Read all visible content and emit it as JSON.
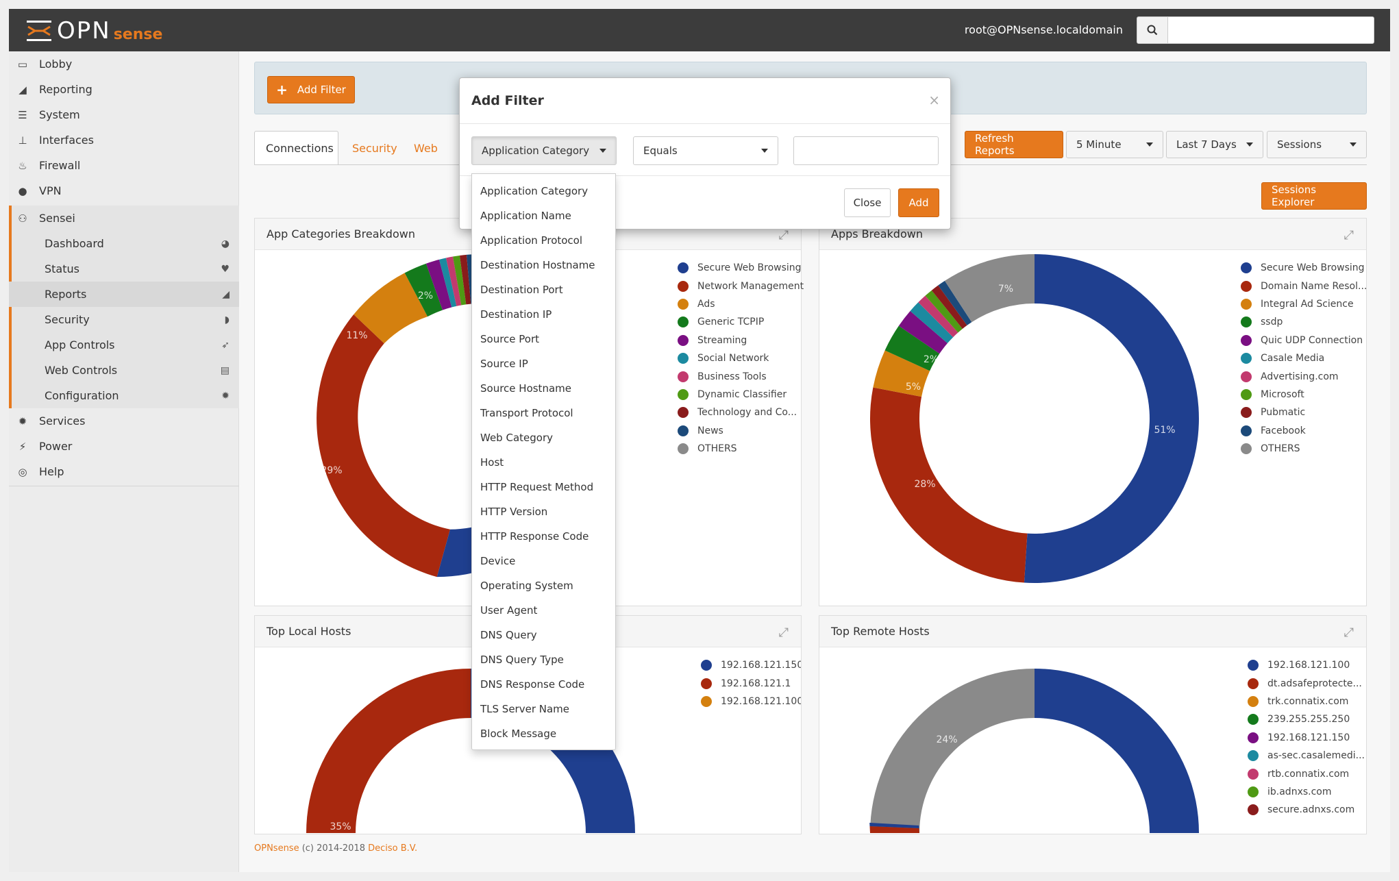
{
  "header": {
    "logo_opn": "OPN",
    "logo_sense": "sense",
    "user": "root@OPNsense.localdomain",
    "search_placeholder": ""
  },
  "sidebar": {
    "items": [
      {
        "label": "Lobby",
        "icon": "laptop-icon"
      },
      {
        "label": "Reporting",
        "icon": "area-chart-icon"
      },
      {
        "label": "System",
        "icon": "server-icon"
      },
      {
        "label": "Interfaces",
        "icon": "sitemap-icon"
      },
      {
        "label": "Firewall",
        "icon": "fire-icon"
      },
      {
        "label": "VPN",
        "icon": "globe-icon"
      },
      {
        "label": "Sensei",
        "icon": "binoculars-icon"
      }
    ],
    "sensei_sub": [
      {
        "label": "Dashboard",
        "icon": "dashboard-icon"
      },
      {
        "label": "Status",
        "icon": "heartbeat-icon"
      },
      {
        "label": "Reports",
        "icon": "area-chart-icon"
      },
      {
        "label": "Security",
        "icon": "shield-icon"
      },
      {
        "label": "App Controls",
        "icon": "paper-plane-icon"
      },
      {
        "label": "Web Controls",
        "icon": "browser-icon"
      },
      {
        "label": "Configuration",
        "icon": "gear-icon"
      }
    ],
    "bottom_items": [
      {
        "label": "Services",
        "icon": "cogs-icon"
      },
      {
        "label": "Power",
        "icon": "plug-icon"
      },
      {
        "label": "Help",
        "icon": "lifebuoy-icon"
      }
    ]
  },
  "filter_bar": {
    "add_filter": "Add Filter"
  },
  "tabs": [
    "Connections",
    "Security",
    "Web"
  ],
  "toolbar": {
    "refresh": "Refresh Reports",
    "interval": "5 Minute",
    "range": "Last 7 Days",
    "metric": "Sessions",
    "explorer": "Sessions Explorer"
  },
  "panels": {
    "app_categories": {
      "title": "App Categories Breakdown",
      "legend": [
        {
          "label": "Secure Web Browsing",
          "color": "#1f3f8f"
        },
        {
          "label": "Network Management",
          "color": "#a8280e"
        },
        {
          "label": "Ads",
          "color": "#d4800f"
        },
        {
          "label": "Generic TCPIP",
          "color": "#147a1c"
        },
        {
          "label": "Streaming",
          "color": "#7a0f82"
        },
        {
          "label": "Social Network",
          "color": "#1c8aa0"
        },
        {
          "label": "Business Tools",
          "color": "#c23a6e"
        },
        {
          "label": "Dynamic Classifier",
          "color": "#4f9a14"
        },
        {
          "label": "Technology and Co...",
          "color": "#8a1c1c"
        },
        {
          "label": "News",
          "color": "#1c4a7a"
        },
        {
          "label": "OTHERS",
          "color": "#8a8a8a"
        }
      ],
      "labels": [
        "11%",
        "2%",
        "29%"
      ]
    },
    "apps": {
      "title": "Apps Breakdown",
      "legend": [
        {
          "label": "Secure Web Browsing",
          "color": "#1f3f8f"
        },
        {
          "label": "Domain Name Resol...",
          "color": "#a8280e"
        },
        {
          "label": "Integral Ad Science",
          "color": "#d4800f"
        },
        {
          "label": "ssdp",
          "color": "#147a1c"
        },
        {
          "label": "Quic UDP Connection",
          "color": "#7a0f82"
        },
        {
          "label": "Casale Media",
          "color": "#1c8aa0"
        },
        {
          "label": "Advertising.com",
          "color": "#c23a6e"
        },
        {
          "label": "Microsoft",
          "color": "#4f9a14"
        },
        {
          "label": "Pubmatic",
          "color": "#8a1c1c"
        },
        {
          "label": "Facebook",
          "color": "#1c4a7a"
        },
        {
          "label": "OTHERS",
          "color": "#8a8a8a"
        }
      ],
      "labels": [
        "51%",
        "28%",
        "5%",
        "2%",
        "7%"
      ]
    },
    "local_hosts": {
      "title": "Top Local Hosts",
      "legend": [
        {
          "label": "192.168.121.150",
          "color": "#1f3f8f"
        },
        {
          "label": "192.168.121.1",
          "color": "#a8280e"
        },
        {
          "label": "192.168.121.100",
          "color": "#d4800f"
        }
      ],
      "labels": [
        "35%"
      ]
    },
    "remote_hosts": {
      "title": "Top Remote Hosts",
      "legend": [
        {
          "label": "192.168.121.100",
          "color": "#1f3f8f"
        },
        {
          "label": "dt.adsafeprotecte...",
          "color": "#a8280e"
        },
        {
          "label": "trk.connatix.com",
          "color": "#d4800f"
        },
        {
          "label": "239.255.255.250",
          "color": "#147a1c"
        },
        {
          "label": "192.168.121.150",
          "color": "#7a0f82"
        },
        {
          "label": "as-sec.casalemedi...",
          "color": "#1c8aa0"
        },
        {
          "label": "rtb.connatix.com",
          "color": "#c23a6e"
        },
        {
          "label": "ib.adnxs.com",
          "color": "#4f9a14"
        },
        {
          "label": "secure.adnxs.com",
          "color": "#8a1c1c"
        }
      ],
      "labels": [
        "24%"
      ]
    }
  },
  "footer": {
    "brand": "OPNsense",
    "text": " (c) 2014-2018 ",
    "company": "Deciso B.V."
  },
  "modal": {
    "title": "Add Filter",
    "field_selected": "Application Category",
    "operator_selected": "Equals",
    "value": "",
    "close_label": "Close",
    "add_label": "Add",
    "options": [
      "Application Category",
      "Application Name",
      "Application Protocol",
      "Destination Hostname",
      "Destination Port",
      "Destination IP",
      "Source Port",
      "Source IP",
      "Source Hostname",
      "Transport Protocol",
      "Web Category",
      "Host",
      "HTTP Request Method",
      "HTTP Version",
      "HTTP Response Code",
      "Device",
      "Operating System",
      "User Agent",
      "DNS Query",
      "DNS Query Type",
      "DNS Response Code",
      "TLS Server Name",
      "Block Message"
    ]
  },
  "colors": {
    "accent": "#e6791e",
    "topbar": "#3c3c3c"
  }
}
